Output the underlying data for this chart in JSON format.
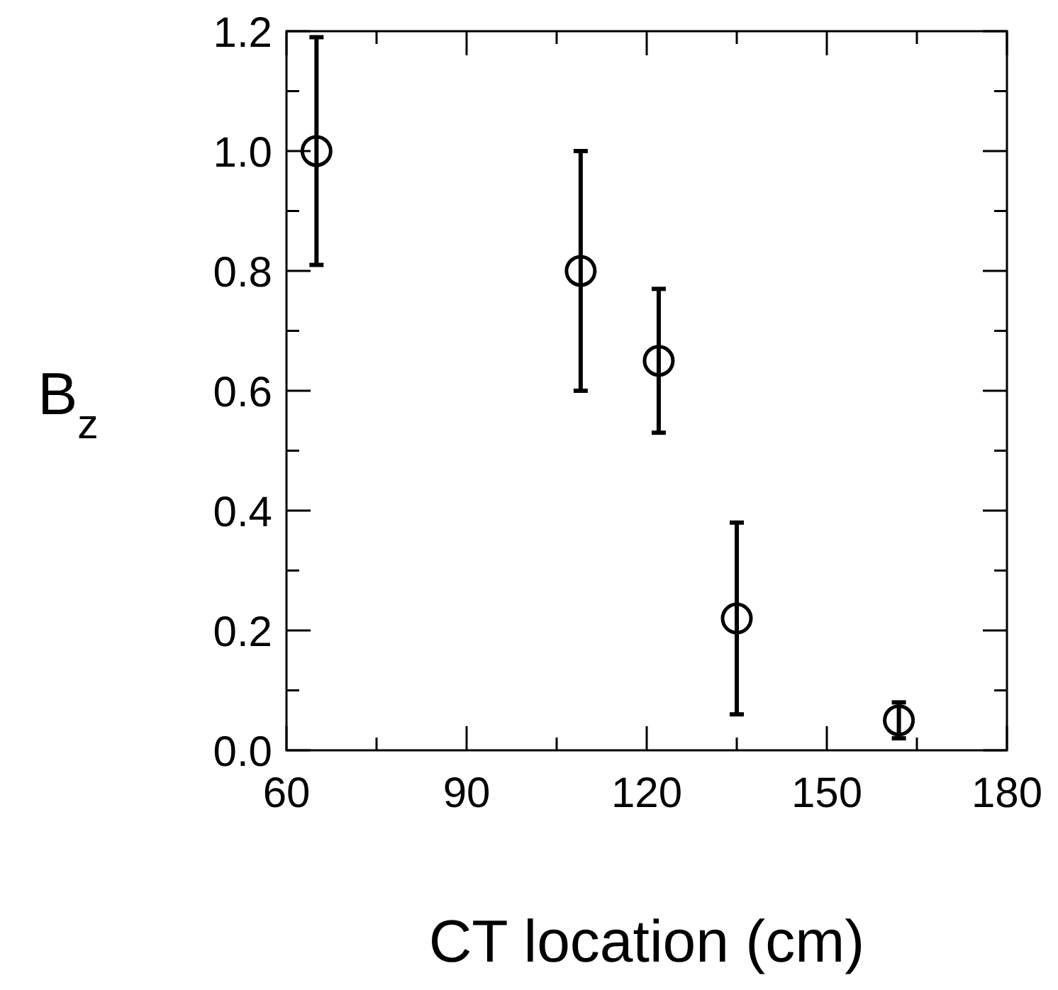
{
  "chart_data": {
    "type": "scatter",
    "xlabel": "CT location (cm)",
    "ylabel": "B$_{z}$",
    "x": [
      65,
      109,
      122,
      135,
      162
    ],
    "series": [
      {
        "color": "#000000",
        "values": [
          1.0,
          0.8,
          0.65,
          0.22,
          0.05
        ],
        "errors": [
          [
            0.81,
            1.19
          ],
          [
            0.6,
            1.0
          ],
          [
            0.53,
            0.77
          ],
          [
            0.06,
            0.38
          ],
          [
            0.02,
            0.08
          ]
        ]
      }
    ],
    "marker": "circle",
    "xlim": [
      60,
      180
    ],
    "xticks": [
      60,
      {
        "value": 75,
        "label": null
      },
      90,
      {
        "value": 105,
        "label": null
      },
      120,
      {
        "value": 135,
        "label": null
      },
      150,
      {
        "value": 165,
        "label": null
      },
      180
    ],
    "ylim": [
      0,
      1.2
    ],
    "yticks": [
      {
        "value": 0,
        "label": "0.0"
      },
      {
        "value": 0.1,
        "label": null
      },
      0.2,
      {
        "value": 0.3,
        "label": null
      },
      0.4,
      {
        "value": 0.5,
        "label": null
      },
      0.6,
      {
        "value": 0.7,
        "label": null
      },
      0.8,
      {
        "value": 0.9,
        "label": null
      },
      {
        "value": 1,
        "label": "1.0"
      },
      {
        "value": 1.1,
        "label": null
      },
      1.2
    ],
    "grid": false
  }
}
